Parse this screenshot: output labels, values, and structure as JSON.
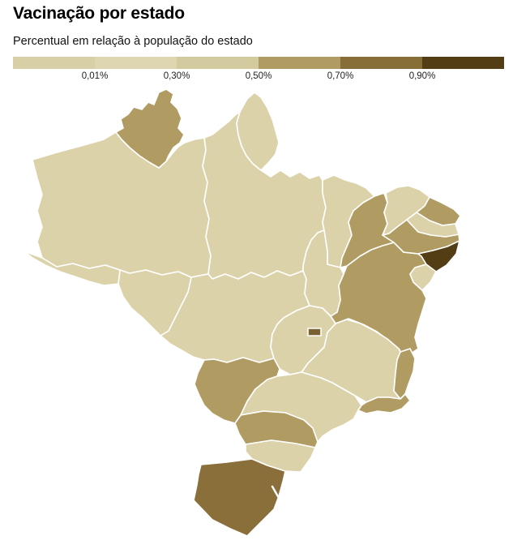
{
  "header": {
    "title": "Vacinação por estado",
    "subtitle": "Percentual em relação à população do estado"
  },
  "legend": {
    "tick_labels": [
      "0,01%",
      "0,30%",
      "0,50%",
      "0,70%",
      "0,90%"
    ],
    "band_colors": [
      "#d8cfa6",
      "#ded6b0",
      "#d4caa0",
      "#b09c63",
      "#876d37",
      "#523d15"
    ]
  },
  "chart_data": {
    "type": "choropleth",
    "title": "Vacinação por estado",
    "subtitle": "Percentual em relação à população do estado",
    "region": "Brazil — states",
    "legend_breaks": [
      "0,01%",
      "0,30%",
      "0,50%",
      "0,70%",
      "0,90%"
    ],
    "legend_band_colors": [
      "#d8cfa6",
      "#ded6b0",
      "#d4caa0",
      "#b09c63",
      "#876d37",
      "#523d15"
    ],
    "states": [
      {
        "id": "AC",
        "name": "Acre",
        "fill": "#dcd2aa",
        "band": "0,01%–0,30%"
      },
      {
        "id": "AL",
        "name": "Alagoas",
        "fill": "#523d15",
        "band": "> 0,90%"
      },
      {
        "id": "AP",
        "name": "Amapá",
        "fill": "#dcd2aa",
        "band": "0,01%–0,30%"
      },
      {
        "id": "AM",
        "name": "Amazonas",
        "fill": "#dcd2aa",
        "band": "0,01%–0,30%"
      },
      {
        "id": "BA",
        "name": "Bahia",
        "fill": "#b09c63",
        "band": "0,50%–0,70%"
      },
      {
        "id": "CE",
        "name": "Ceará",
        "fill": "#dcd2aa",
        "band": "0,01%–0,30%"
      },
      {
        "id": "DF",
        "name": "Distrito Federal",
        "fill": "#7a6131",
        "band": "0,70%–0,90%"
      },
      {
        "id": "ES",
        "name": "Espírito Santo",
        "fill": "#b09c63",
        "band": "0,50%–0,70%"
      },
      {
        "id": "GO",
        "name": "Goiás",
        "fill": "#dcd2aa",
        "band": "0,01%–0,30%"
      },
      {
        "id": "MA",
        "name": "Maranhão",
        "fill": "#dcd2aa",
        "band": "0,01%–0,30%"
      },
      {
        "id": "MT",
        "name": "Mato Grosso",
        "fill": "#dcd2aa",
        "band": "0,01%–0,30%"
      },
      {
        "id": "MS",
        "name": "Mato Grosso do Sul",
        "fill": "#b09c63",
        "band": "0,50%–0,70%"
      },
      {
        "id": "MG",
        "name": "Minas Gerais",
        "fill": "#dcd2aa",
        "band": "0,01%–0,30%"
      },
      {
        "id": "PA",
        "name": "Pará",
        "fill": "#dcd2aa",
        "band": "0,01%–0,30%"
      },
      {
        "id": "PB",
        "name": "Paraíba",
        "fill": "#dcd2aa",
        "band": "0,01%–0,30%"
      },
      {
        "id": "PR",
        "name": "Paraná",
        "fill": "#b09c63",
        "band": "0,50%–0,70%"
      },
      {
        "id": "PE",
        "name": "Pernambuco",
        "fill": "#b09c63",
        "band": "0,50%–0,70%"
      },
      {
        "id": "PI",
        "name": "Piauí",
        "fill": "#b09c63",
        "band": "0,50%–0,70%"
      },
      {
        "id": "RJ",
        "name": "Rio de Janeiro",
        "fill": "#b09c63",
        "band": "0,50%–0,70%"
      },
      {
        "id": "RN",
        "name": "Rio Grande do Norte",
        "fill": "#b09c63",
        "band": "0,50%–0,70%"
      },
      {
        "id": "RS",
        "name": "Rio Grande do Sul",
        "fill": "#8a6f3a",
        "band": "0,70%–0,90%"
      },
      {
        "id": "RO",
        "name": "Rondônia",
        "fill": "#dcd2aa",
        "band": "0,01%–0,30%"
      },
      {
        "id": "RR",
        "name": "Roraima",
        "fill": "#b09c63",
        "band": "0,50%–0,70%"
      },
      {
        "id": "SC",
        "name": "Santa Catarina",
        "fill": "#dcd2aa",
        "band": "0,01%–0,30%"
      },
      {
        "id": "SP",
        "name": "São Paulo",
        "fill": "#dcd2aa",
        "band": "0,01%–0,30%"
      },
      {
        "id": "SE",
        "name": "Sergipe",
        "fill": "#dcd2aa",
        "band": "0,01%–0,30%"
      },
      {
        "id": "TO",
        "name": "Tocantins",
        "fill": "#dcd2aa",
        "band": "0,01%–0,30%"
      }
    ]
  }
}
